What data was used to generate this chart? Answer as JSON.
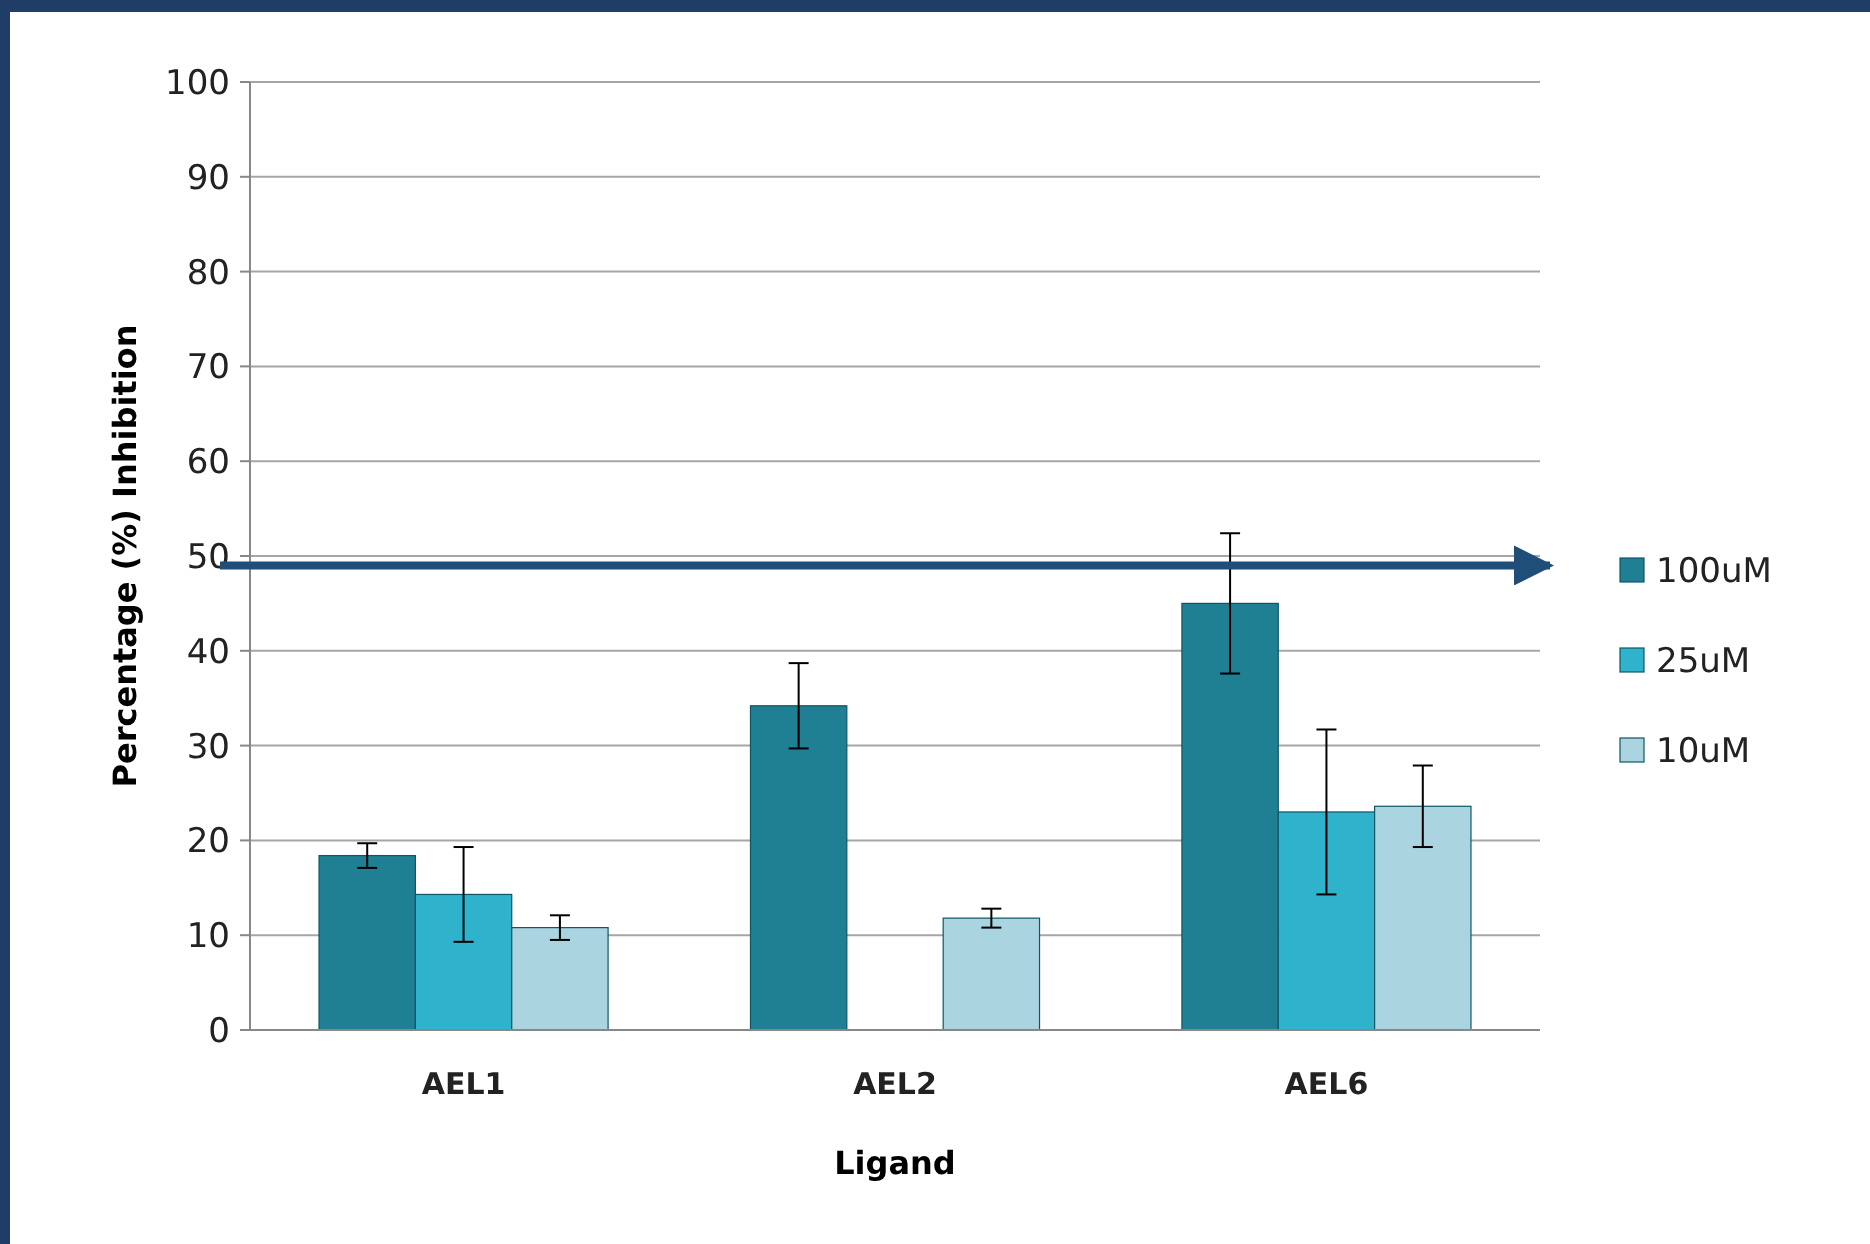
{
  "chart_data": {
    "type": "bar",
    "xlabel": "Ligand",
    "ylabel": "Percentage (%) Inhibition",
    "categories": [
      "AEL1",
      "AEL2",
      "AEL6"
    ],
    "series": [
      {
        "name": "100uM",
        "color": "#1f7f93",
        "values": [
          18.4,
          34.2,
          45
        ],
        "errors": [
          1.3,
          4.5,
          7.4
        ]
      },
      {
        "name": "25uM",
        "color": "#2fb3cc",
        "values": [
          14.3,
          null,
          23
        ],
        "errors": [
          5,
          null,
          8.7
        ]
      },
      {
        "name": "10uM",
        "color": "#a9d4e0",
        "values": [
          10.8,
          11.8,
          23.6
        ],
        "errors": [
          1.3,
          1,
          4.3
        ]
      }
    ],
    "ylim": [
      0,
      100
    ],
    "yticks": [
      0,
      10,
      20,
      30,
      40,
      50,
      60,
      70,
      80,
      90,
      100
    ],
    "grid": "y",
    "legend": "right",
    "ref_lines": [
      {
        "axis": "y",
        "value": 49,
        "color": "#1f4e79"
      }
    ]
  }
}
